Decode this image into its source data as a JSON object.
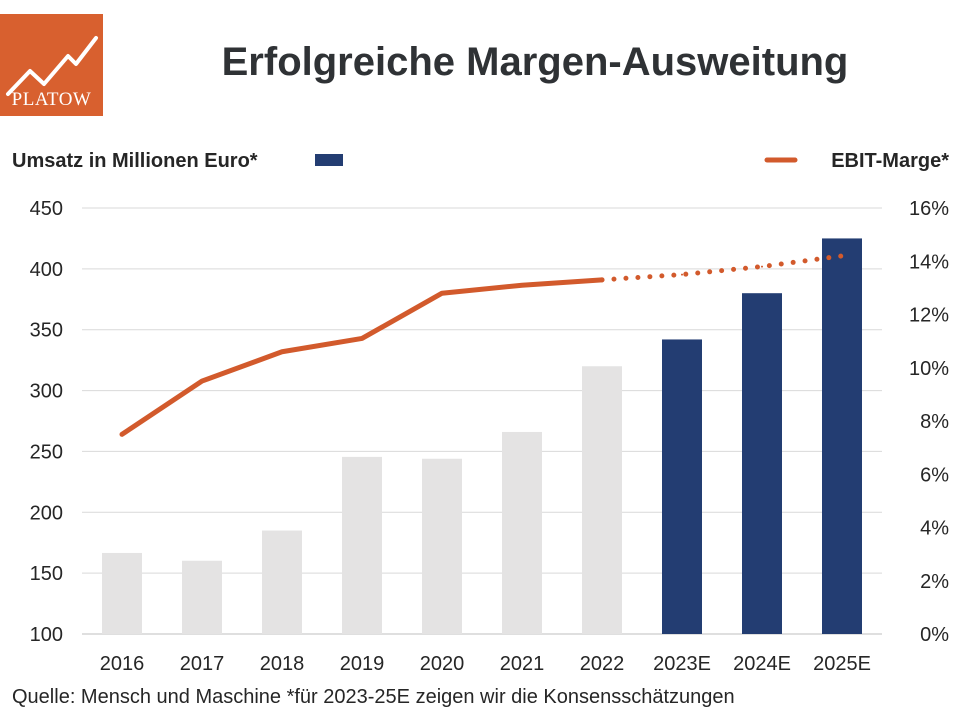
{
  "header": {
    "title": "Erfolgreiche Margen-Ausweitung",
    "logo_text": "PLATOW"
  },
  "footer": {
    "source": "Quelle: Mensch und Maschine *für 2023-25E zeigen wir die Konsensschätzungen"
  },
  "colors": {
    "bar_actual": "#e4e3e3",
    "bar_estimate": "#233d72",
    "line": "#d25a2c",
    "logo": "#d8602f",
    "grid": "#d9d9d9"
  },
  "chart_data": {
    "type": "bar",
    "categories": [
      "2016",
      "2017",
      "2018",
      "2019",
      "2020",
      "2021",
      "2022",
      "2023E",
      "2024E",
      "2025E"
    ],
    "estimate_from_index": 7,
    "series": [
      {
        "name": "Umsatz in Millionen Euro*",
        "type": "bar",
        "axis": "left",
        "values": [
          166.6,
          160.2,
          185.0,
          245.5,
          244.0,
          266.0,
          320.0,
          342.0,
          380.0,
          425.0
        ]
      },
      {
        "name": "EBIT-Marge*",
        "type": "line",
        "axis": "right",
        "values": [
          7.5,
          9.5,
          10.6,
          11.1,
          12.8,
          13.1,
          13.3,
          13.5,
          13.8,
          14.2
        ]
      }
    ],
    "y_left": {
      "ylim": [
        100,
        450
      ],
      "ticks": [
        "100",
        "150",
        "200",
        "250",
        "300",
        "350",
        "400",
        "450"
      ]
    },
    "y_right": {
      "ylim": [
        0,
        16
      ],
      "ticks": [
        "0%",
        "2%",
        "4%",
        "6%",
        "8%",
        "10%",
        "12%",
        "14%",
        "16%"
      ]
    },
    "grid": true,
    "legend": [
      {
        "label": "Umsatz in Millionen Euro*",
        "placement": "top-left"
      },
      {
        "label": "EBIT-Marge*",
        "placement": "top-right"
      }
    ]
  }
}
